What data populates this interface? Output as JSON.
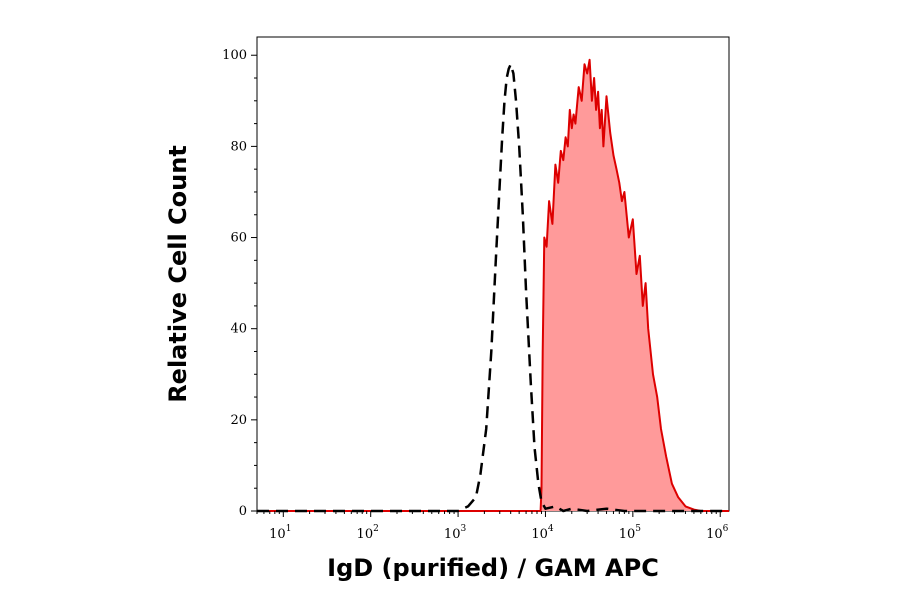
{
  "chart_data": {
    "type": "area",
    "title": "",
    "xlabel": "IgD (purified) / GAM APC",
    "ylabel": "Relative Cell Count",
    "x_scale": "log",
    "xlim": [
      5,
      1260000
    ],
    "ylim": [
      0,
      104
    ],
    "x_ticks": [
      {
        "base": "10",
        "exp": "1",
        "value": 10
      },
      {
        "base": "10",
        "exp": "2",
        "value": 100
      },
      {
        "base": "10",
        "exp": "3",
        "value": 1000
      },
      {
        "base": "10",
        "exp": "4",
        "value": 10000
      },
      {
        "base": "10",
        "exp": "5",
        "value": 100000
      },
      {
        "base": "10",
        "exp": "6",
        "value": 1000000
      }
    ],
    "y_ticks": [
      {
        "label": "0",
        "value": 0
      },
      {
        "label": "20",
        "value": 20
      },
      {
        "label": "40",
        "value": 40
      },
      {
        "label": "60",
        "value": 60
      },
      {
        "label": "80",
        "value": 80
      },
      {
        "label": "100",
        "value": 100
      }
    ],
    "grid": false,
    "legend": "none",
    "series": [
      {
        "style": "dashed",
        "color": "#000000",
        "filled": false,
        "x": [
          5,
          1000,
          1300,
          1600,
          1800,
          2100,
          2400,
          2700,
          3000,
          3200,
          3400,
          3600,
          3800,
          4000,
          4300,
          4600,
          5000,
          5500,
          6000,
          6800,
          7500,
          8300,
          9000,
          10000,
          13000,
          16000,
          20000,
          30000,
          50000,
          80000,
          1260000
        ],
        "y": [
          0,
          0,
          1,
          3,
          8,
          18,
          35,
          55,
          72,
          82,
          90,
          95,
          97,
          98,
          96,
          90,
          80,
          65,
          48,
          28,
          14,
          6,
          2,
          0.5,
          1,
          0,
          0.5,
          0,
          0.5,
          0,
          0
        ]
      },
      {
        "style": "solid",
        "color": "#dd0000",
        "fill": "#ff9a9a",
        "filled": true,
        "x": [
          5,
          8800,
          9000,
          9300,
          9700,
          10300,
          11000,
          12000,
          13000,
          14000,
          15000,
          16000,
          17000,
          18000,
          19000,
          20000,
          21000,
          22000,
          24000,
          26000,
          28000,
          30000,
          32000,
          34000,
          36000,
          38000,
          40000,
          42000,
          44000,
          46000,
          50000,
          55000,
          60000,
          65000,
          70000,
          75000,
          80000,
          90000,
          100000,
          110000,
          120000,
          130000,
          140000,
          150000,
          170000,
          190000,
          210000,
          240000,
          280000,
          330000,
          400000,
          500000,
          600000,
          1260000
        ],
        "y": [
          0,
          0,
          5,
          35,
          60,
          58,
          68,
          63,
          76,
          72,
          79,
          77,
          82,
          80,
          88,
          84,
          87,
          85,
          93,
          90,
          98,
          96,
          99,
          90,
          95,
          88,
          92,
          84,
          88,
          80,
          91,
          83,
          78,
          75,
          72,
          68,
          70,
          60,
          64,
          52,
          56,
          45,
          50,
          40,
          30,
          25,
          18,
          12,
          6,
          3,
          1,
          0.3,
          0,
          0
        ]
      }
    ]
  }
}
